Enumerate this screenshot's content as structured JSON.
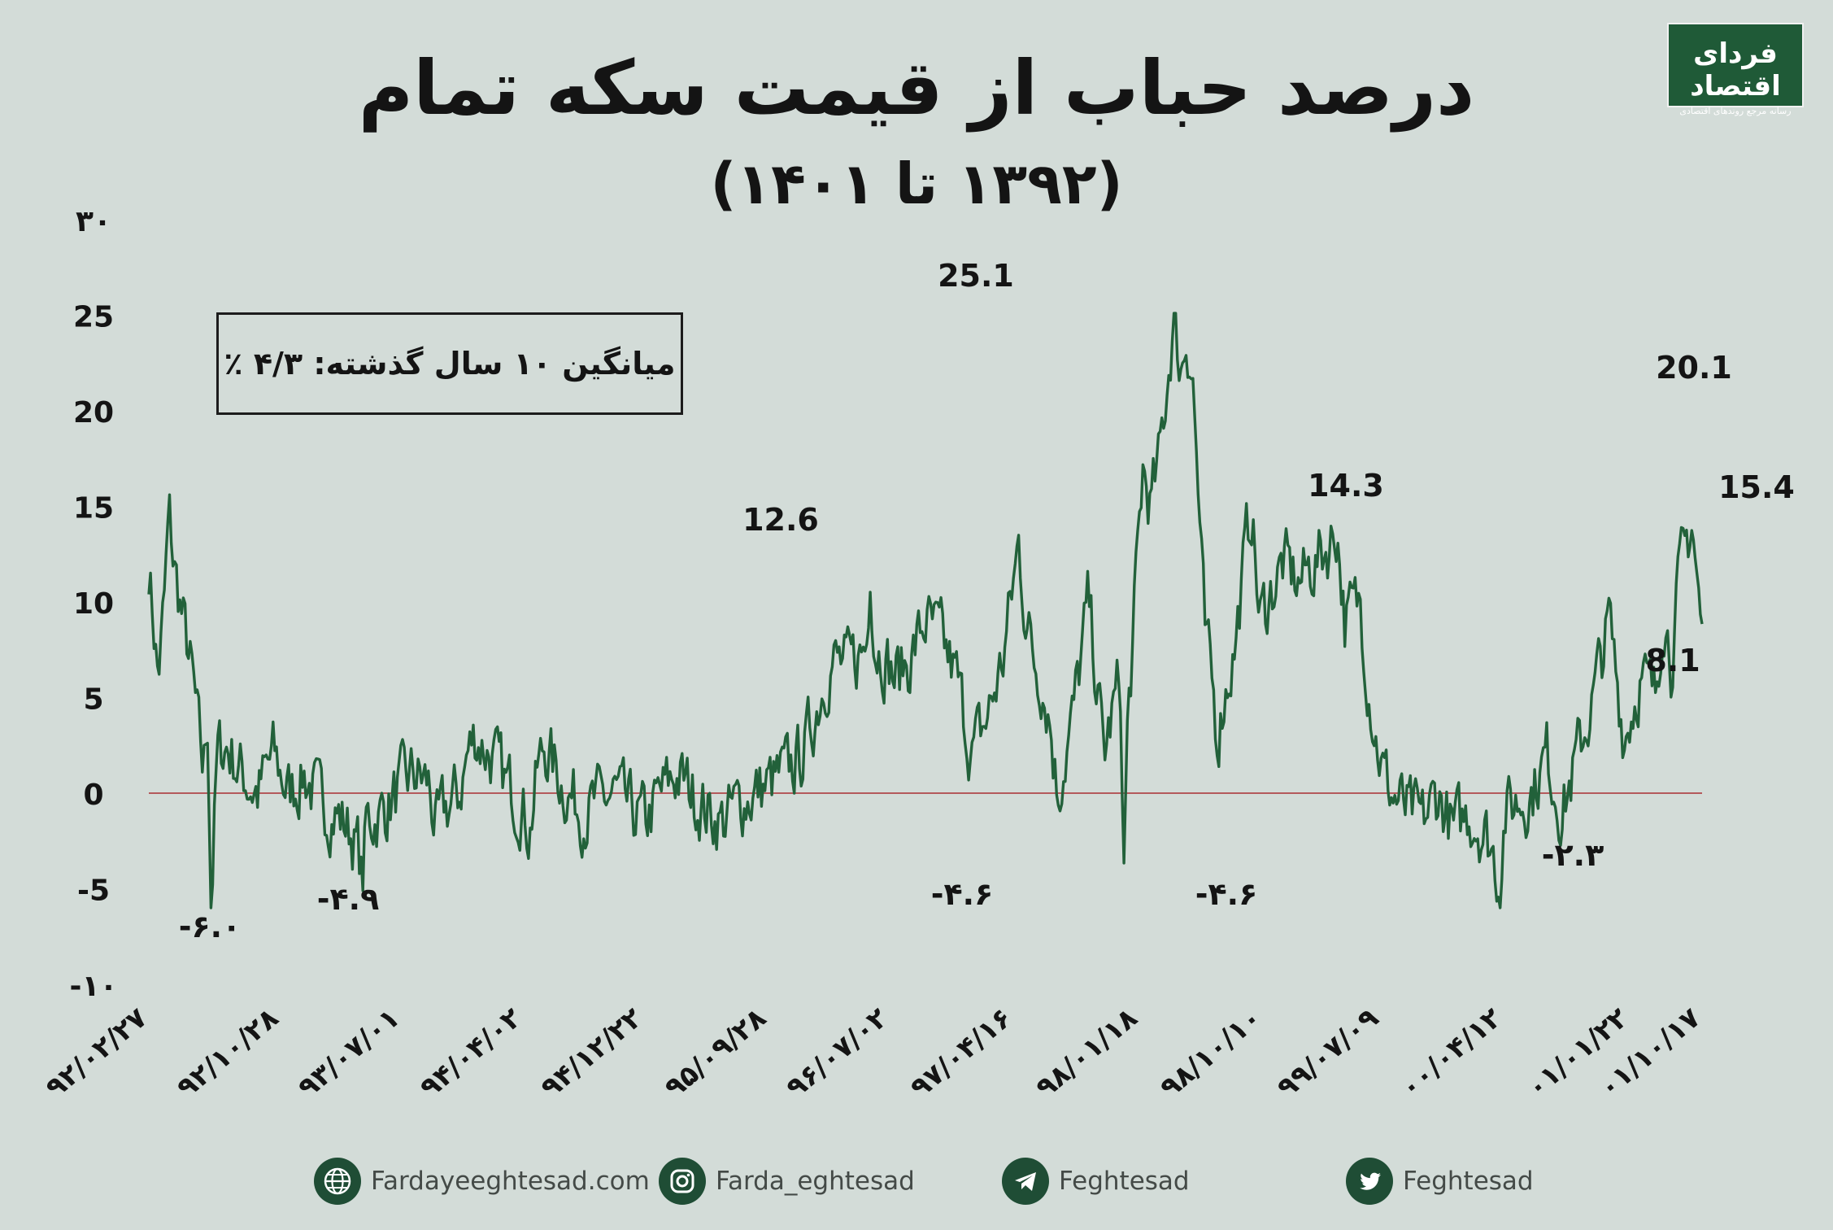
{
  "title": "درصد حباب از قیمت سکه تمام",
  "subtitle": "(۱۳۹۲ تا ۱۴۰۱)",
  "logo": {
    "name": "فردای اقتصاد",
    "tagline": "رسانه مرجع روندهای اقتصادی"
  },
  "average_box": "میانگین ۱۰ سال گذشته: ۴/۳ ٪",
  "footer": {
    "website": "Fardayeeghtesad.com",
    "instagram": "Farda_eghtesad",
    "telegram": "Feghtesad",
    "twitter": "Feghtesad"
  },
  "colors": {
    "line": "#22613a",
    "zero_line": "#b0484a",
    "background": "#d3dcd8",
    "brand": "#1f5a37"
  },
  "chart_data": {
    "type": "line",
    "title": "درصد حباب از قیمت سکه تمام",
    "subtitle": "(۱۳۹۲ تا ۱۴۰۱)",
    "xlabel": "",
    "ylabel": "",
    "ylim": [
      -10,
      30
    ],
    "y_ticks": [
      -10,
      -5,
      0,
      5,
      10,
      15,
      20,
      25,
      30
    ],
    "y_tick_labels": [
      "-۱۰",
      "-5",
      "0",
      "5",
      "10",
      "15",
      "20",
      "25",
      "۳۰"
    ],
    "x_tick_labels": [
      "۹۲/۰۲/۲۷",
      "۹۲/۱۰/۲۸",
      "۹۳/۰۷/۰۱",
      "۹۴/۰۴/۰۲",
      "۹۴/۱۲/۲۲",
      "۹۵/۰۹/۲۸",
      "۹۶/۰۷/۰۲",
      "۹۷/۰۴/۱۶",
      "۹۸/۰۱/۱۸",
      "۹۸/۱۰/۱۰",
      "۹۹/۰۷/۰۹",
      "۰۰/۰۴/۱۲",
      "۰۱/۰۱/۲۲",
      "۰۱/۱۰/۱۷"
    ],
    "x_tick_positions": [
      0,
      0.0845,
      0.1625,
      0.241,
      0.3188,
      0.3985,
      0.4768,
      0.5567,
      0.6375,
      0.7175,
      0.7928,
      0.872,
      0.9535,
      1.0
    ],
    "keypoints": [
      [
        0.0,
        12
      ],
      [
        0.006,
        6
      ],
      [
        0.01,
        10
      ],
      [
        0.013,
        14.5
      ],
      [
        0.016,
        12
      ],
      [
        0.022,
        9
      ],
      [
        0.028,
        6
      ],
      [
        0.035,
        1
      ],
      [
        0.038,
        4
      ],
      [
        0.04,
        -6.0
      ],
      [
        0.044,
        2
      ],
      [
        0.05,
        2.5
      ],
      [
        0.06,
        1
      ],
      [
        0.07,
        0
      ],
      [
        0.08,
        2
      ],
      [
        0.09,
        0
      ],
      [
        0.1,
        1
      ],
      [
        0.11,
        -0.5
      ],
      [
        0.12,
        -1
      ],
      [
        0.125,
        -1.5
      ],
      [
        0.13,
        -2
      ],
      [
        0.135,
        -3
      ],
      [
        0.1375,
        -4.9
      ],
      [
        0.14,
        -1.5
      ],
      [
        0.15,
        -1
      ],
      [
        0.16,
        0
      ],
      [
        0.17,
        1
      ],
      [
        0.18,
        0.5
      ],
      [
        0.185,
        -2
      ],
      [
        0.19,
        -1
      ],
      [
        0.2,
        0
      ],
      [
        0.205,
        2
      ],
      [
        0.21,
        3
      ],
      [
        0.22,
        2
      ],
      [
        0.23,
        0.5
      ],
      [
        0.24,
        -0.5
      ],
      [
        0.245,
        -2
      ],
      [
        0.25,
        1
      ],
      [
        0.255,
        2.5
      ],
      [
        0.26,
        1.5
      ],
      [
        0.27,
        0
      ],
      [
        0.28,
        -1
      ],
      [
        0.29,
        -0.5
      ],
      [
        0.3,
        0
      ],
      [
        0.31,
        -1
      ],
      [
        0.32,
        -1.5
      ],
      [
        0.33,
        0
      ],
      [
        0.34,
        1
      ],
      [
        0.35,
        0
      ],
      [
        0.36,
        -1
      ],
      [
        0.37,
        -1.5
      ],
      [
        0.38,
        -0.5
      ],
      [
        0.39,
        0
      ],
      [
        0.4,
        0.5
      ],
      [
        0.41,
        1
      ],
      [
        0.42,
        2
      ],
      [
        0.425,
        3
      ],
      [
        0.43,
        4.5
      ],
      [
        0.435,
        6
      ],
      [
        0.44,
        7
      ],
      [
        0.45,
        6.5
      ],
      [
        0.46,
        7.5
      ],
      [
        0.4625,
        8
      ],
      [
        0.4645,
        12.6
      ],
      [
        0.467,
        8
      ],
      [
        0.475,
        7
      ],
      [
        0.48,
        6
      ],
      [
        0.49,
        7
      ],
      [
        0.5,
        9
      ],
      [
        0.51,
        8
      ],
      [
        0.52,
        6
      ],
      [
        0.53,
        2
      ],
      [
        0.54,
        4
      ],
      [
        0.55,
        7
      ],
      [
        0.555,
        10
      ],
      [
        0.56,
        13
      ],
      [
        0.565,
        9
      ],
      [
        0.57,
        7
      ],
      [
        0.575,
        6
      ],
      [
        0.58,
        4
      ],
      [
        0.585,
        0
      ],
      [
        0.59,
        2
      ],
      [
        0.595,
        4
      ],
      [
        0.6,
        7
      ],
      [
        0.605,
        10
      ],
      [
        0.61,
        6
      ],
      [
        0.615,
        2
      ],
      [
        0.62,
        4
      ],
      [
        0.6255,
        6
      ],
      [
        0.6275,
        -4.6
      ],
      [
        0.63,
        3
      ],
      [
        0.635,
        10
      ],
      [
        0.64,
        17
      ],
      [
        0.645,
        15
      ],
      [
        0.65,
        17
      ],
      [
        0.655,
        21
      ],
      [
        0.66,
        25.1
      ],
      [
        0.664,
        22
      ],
      [
        0.668,
        24
      ],
      [
        0.672,
        22
      ],
      [
        0.676,
        15
      ],
      [
        0.68,
        8
      ],
      [
        0.684,
        6
      ],
      [
        0.688,
        3
      ],
      [
        0.692,
        5
      ],
      [
        0.7,
        8
      ],
      [
        0.705,
        12
      ],
      [
        0.71,
        15
      ],
      [
        0.715,
        9
      ],
      [
        0.72,
        10
      ],
      [
        0.73,
        12
      ],
      [
        0.74,
        11
      ],
      [
        0.75,
        12
      ],
      [
        0.76,
        13
      ],
      [
        0.765,
        14
      ],
      [
        0.77,
        9
      ],
      [
        0.78,
        10
      ],
      [
        0.785,
        6
      ],
      [
        0.79,
        3
      ],
      [
        0.795,
        1
      ],
      [
        0.8,
        0
      ],
      [
        0.81,
        -1
      ],
      [
        0.82,
        -1.5
      ],
      [
        0.83,
        0
      ],
      [
        0.84,
        -2
      ],
      [
        0.85,
        -1
      ],
      [
        0.86,
        -2
      ],
      [
        0.865,
        -3
      ],
      [
        0.8695,
        -4.6
      ],
      [
        0.873,
        -1
      ],
      [
        0.88,
        -0.5
      ],
      [
        0.89,
        0
      ],
      [
        0.9,
        2
      ],
      [
        0.91,
        -1
      ],
      [
        0.92,
        2
      ],
      [
        0.93,
        5
      ],
      [
        0.94,
        9
      ],
      [
        0.95,
        3
      ],
      [
        0.96,
        6
      ],
      [
        0.97,
        5
      ],
      [
        0.975,
        10
      ],
      [
        0.98,
        7
      ],
      [
        0.985,
        11
      ],
      [
        0.9935,
        14.3
      ],
      [
        1.0,
        8
      ]
    ],
    "keypoints_note": "",
    "series": [
      {
        "name": "",
        "x_start": "۹۲/۰۲/۲۷",
        "x_end": "۰۱/۱۰/۱۷"
      }
    ],
    "annotations": [
      {
        "label": "-۶.۰",
        "value": -6.0
      },
      {
        "label": "-۴.۹",
        "value": -4.9
      },
      {
        "label": "12.6",
        "value": 12.6
      },
      {
        "label": "25.1",
        "value": 25.1
      },
      {
        "label": "-۴.۶",
        "value": -4.6
      },
      {
        "label": "-۴.۶",
        "value": -4.6
      },
      {
        "label": "14.3",
        "value": 14.3
      },
      {
        "label": "-۲.۳",
        "value": -2.3
      },
      {
        "label": "8.1",
        "value": 8.1
      },
      {
        "label": "20.1",
        "value": 20.1
      },
      {
        "label": "15.4",
        "value": 15.4
      }
    ],
    "reference_line": {
      "y": 0
    },
    "average": 4.3,
    "grid": false,
    "legend": "none"
  }
}
